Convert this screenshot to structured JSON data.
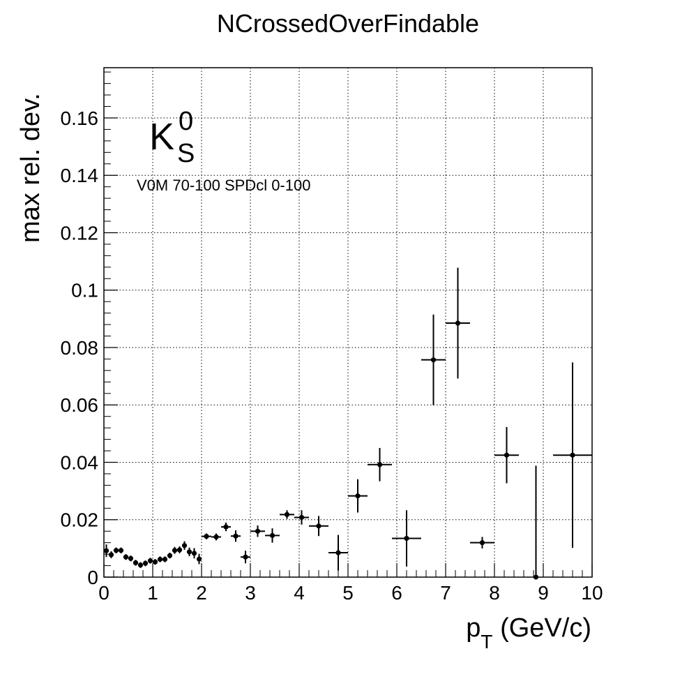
{
  "chart_data": {
    "type": "scatter",
    "title": "NCrossedOverFindable",
    "xlabel_main": "p",
    "xlabel_sub": "T",
    "xlabel_rest": " (GeV/c)",
    "ylabel": "max rel. dev.",
    "xlim": [
      0,
      10
    ],
    "ylim": [
      0,
      0.1775
    ],
    "grid": true,
    "log_y": false,
    "x_ticks": [
      "0",
      "1",
      "2",
      "3",
      "4",
      "5",
      "6",
      "7",
      "8",
      "9",
      "10"
    ],
    "y_ticks": [
      "0",
      "0.02",
      "0.04",
      "0.06",
      "0.08",
      "0.1",
      "0.12",
      "0.14",
      "0.16"
    ],
    "annotation": {
      "particle": "K",
      "superscript": "0",
      "subscript": "S",
      "selection": "V0M 70-100 SPDcl 0-100"
    },
    "series": [
      {
        "marker_color": "#000000",
        "points": [
          {
            "x": 0.05,
            "y": 0.0092,
            "xerr": 0.05,
            "yerr": 0.0022
          },
          {
            "x": 0.15,
            "y": 0.0078,
            "xerr": 0.05,
            "yerr": 0.0012
          },
          {
            "x": 0.25,
            "y": 0.0093,
            "xerr": 0.05,
            "yerr": 0.001
          },
          {
            "x": 0.35,
            "y": 0.0093,
            "xerr": 0.05,
            "yerr": 0.001
          },
          {
            "x": 0.45,
            "y": 0.007,
            "xerr": 0.05,
            "yerr": 0.001
          },
          {
            "x": 0.55,
            "y": 0.0065,
            "xerr": 0.05,
            "yerr": 0.001
          },
          {
            "x": 0.65,
            "y": 0.005,
            "xerr": 0.05,
            "yerr": 0.001
          },
          {
            "x": 0.75,
            "y": 0.0042,
            "xerr": 0.05,
            "yerr": 0.001
          },
          {
            "x": 0.85,
            "y": 0.0048,
            "xerr": 0.05,
            "yerr": 0.001
          },
          {
            "x": 0.95,
            "y": 0.0057,
            "xerr": 0.05,
            "yerr": 0.001
          },
          {
            "x": 1.05,
            "y": 0.0053,
            "xerr": 0.05,
            "yerr": 0.001
          },
          {
            "x": 1.15,
            "y": 0.0062,
            "xerr": 0.05,
            "yerr": 0.001
          },
          {
            "x": 1.25,
            "y": 0.0062,
            "xerr": 0.05,
            "yerr": 0.001
          },
          {
            "x": 1.35,
            "y": 0.0075,
            "xerr": 0.05,
            "yerr": 0.001
          },
          {
            "x": 1.45,
            "y": 0.0093,
            "xerr": 0.05,
            "yerr": 0.0012
          },
          {
            "x": 1.55,
            "y": 0.0095,
            "xerr": 0.05,
            "yerr": 0.0012
          },
          {
            "x": 1.65,
            "y": 0.011,
            "xerr": 0.05,
            "yerr": 0.0015
          },
          {
            "x": 1.75,
            "y": 0.0088,
            "xerr": 0.05,
            "yerr": 0.0015
          },
          {
            "x": 1.85,
            "y": 0.0083,
            "xerr": 0.05,
            "yerr": 0.0018
          },
          {
            "x": 1.95,
            "y": 0.0063,
            "xerr": 0.05,
            "yerr": 0.0018
          },
          {
            "x": 2.1,
            "y": 0.0142,
            "xerr": 0.1,
            "yerr": 0.001
          },
          {
            "x": 2.3,
            "y": 0.014,
            "xerr": 0.1,
            "yerr": 0.0012
          },
          {
            "x": 2.5,
            "y": 0.0175,
            "xerr": 0.1,
            "yerr": 0.0015
          },
          {
            "x": 2.7,
            "y": 0.0143,
            "xerr": 0.1,
            "yerr": 0.002
          },
          {
            "x": 2.9,
            "y": 0.007,
            "xerr": 0.1,
            "yerr": 0.0022
          },
          {
            "x": 3.15,
            "y": 0.016,
            "xerr": 0.15,
            "yerr": 0.002
          },
          {
            "x": 3.45,
            "y": 0.0145,
            "xerr": 0.15,
            "yerr": 0.0025
          },
          {
            "x": 3.75,
            "y": 0.0218,
            "xerr": 0.15,
            "yerr": 0.0015
          },
          {
            "x": 4.05,
            "y": 0.0208,
            "xerr": 0.15,
            "yerr": 0.0025
          },
          {
            "x": 4.4,
            "y": 0.0178,
            "xerr": 0.2,
            "yerr": 0.0035
          },
          {
            "x": 4.8,
            "y": 0.0085,
            "xerr": 0.2,
            "yerr": 0.0062
          },
          {
            "x": 5.2,
            "y": 0.0283,
            "xerr": 0.2,
            "yerr": 0.0058
          },
          {
            "x": 5.65,
            "y": 0.0392,
            "xerr": 0.25,
            "yerr": 0.0058
          },
          {
            "x": 6.2,
            "y": 0.0135,
            "xerr": 0.3,
            "yerr": 0.0098
          },
          {
            "x": 6.75,
            "y": 0.0757,
            "xerr": 0.25,
            "yerr": 0.0158
          },
          {
            "x": 7.25,
            "y": 0.0885,
            "xerr": 0.25,
            "yerr": 0.0193
          },
          {
            "x": 7.75,
            "y": 0.012,
            "xerr": 0.25,
            "yerr": 0.002
          },
          {
            "x": 8.25,
            "y": 0.0425,
            "xerr": 0.25,
            "yerr": 0.0098
          },
          {
            "x": 8.85,
            "y": 0.0,
            "xerr": 0.0,
            "yerr": 0.0388
          },
          {
            "x": 9.6,
            "y": 0.0425,
            "xerr": 0.4,
            "yerr": 0.0323
          }
        ]
      }
    ]
  }
}
